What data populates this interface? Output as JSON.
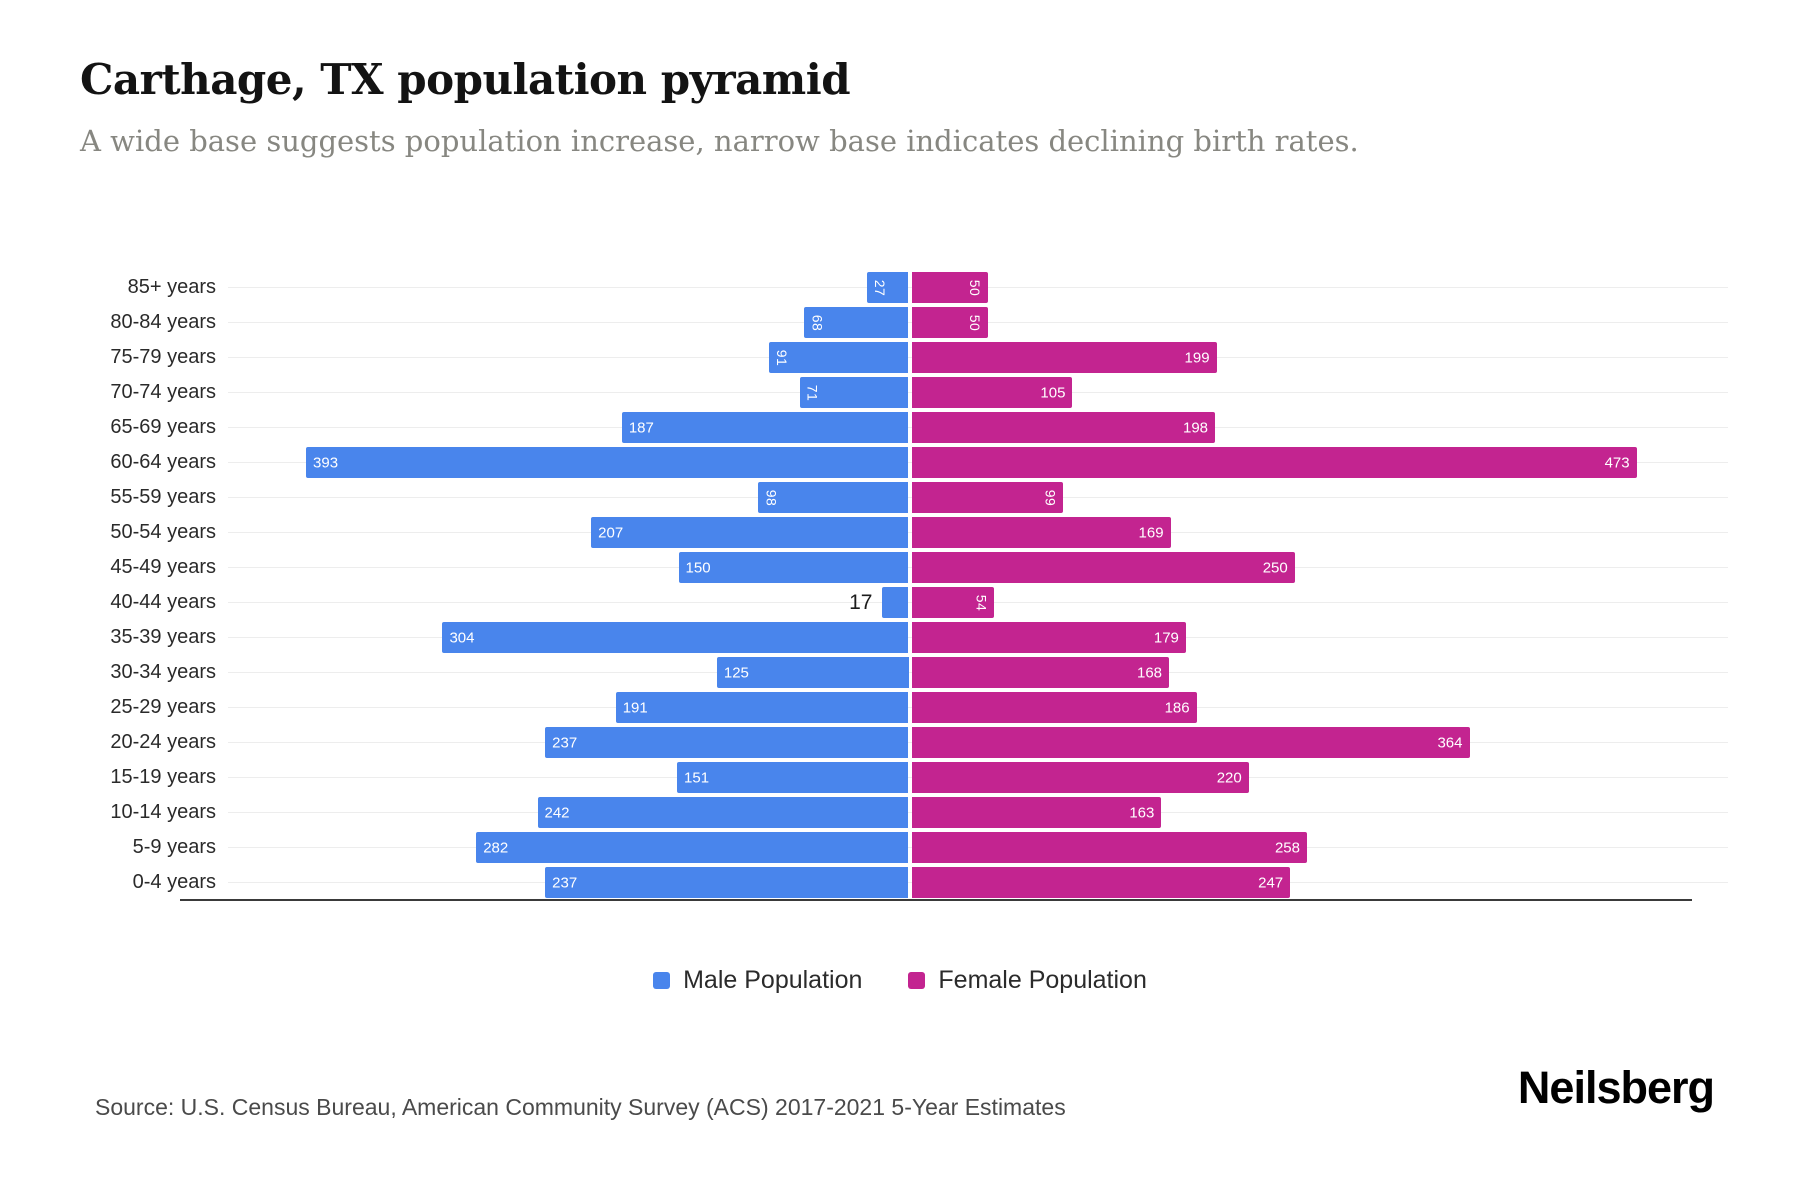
{
  "header": {
    "title": "Carthage, TX population pyramid",
    "subtitle": "A wide base suggests population increase, narrow base indicates declining birth rates."
  },
  "legend": {
    "male_label": "Male Population",
    "female_label": "Female Population"
  },
  "footer": {
    "source": "Source: U.S. Census Bureau, American Community Survey (ACS) 2017-2021 5-Year Estimates",
    "brand": "Neilsberg"
  },
  "colors": {
    "male": "#4985EC",
    "female": "#C32490",
    "gridline": "#ededed",
    "axis": "#3a3a3a",
    "value_text_inside": "#ffffff",
    "value_text_outside": "#1c1c1c"
  },
  "chart_data": {
    "type": "bar",
    "variant": "population-pyramid",
    "title": "Carthage, TX population pyramid",
    "categories": [
      "85+ years",
      "80-84 years",
      "75-79 years",
      "70-74 years",
      "65-69 years",
      "60-64 years",
      "55-59 years",
      "50-54 years",
      "45-49 years",
      "40-44 years",
      "35-39 years",
      "30-34 years",
      "25-29 years",
      "20-24 years",
      "15-19 years",
      "10-14 years",
      "5-9 years",
      "0-4 years"
    ],
    "series": [
      {
        "name": "Male Population",
        "side": "left",
        "values": [
          27,
          68,
          91,
          71,
          187,
          393,
          98,
          207,
          150,
          17,
          304,
          125,
          191,
          237,
          151,
          242,
          282,
          237
        ]
      },
      {
        "name": "Female Population",
        "side": "right",
        "values": [
          50,
          50,
          199,
          105,
          198,
          473,
          99,
          169,
          250,
          54,
          179,
          168,
          186,
          364,
          220,
          163,
          258,
          247
        ]
      }
    ],
    "value_max_per_side": 473,
    "grid": true,
    "legend_position": "bottom-center"
  }
}
